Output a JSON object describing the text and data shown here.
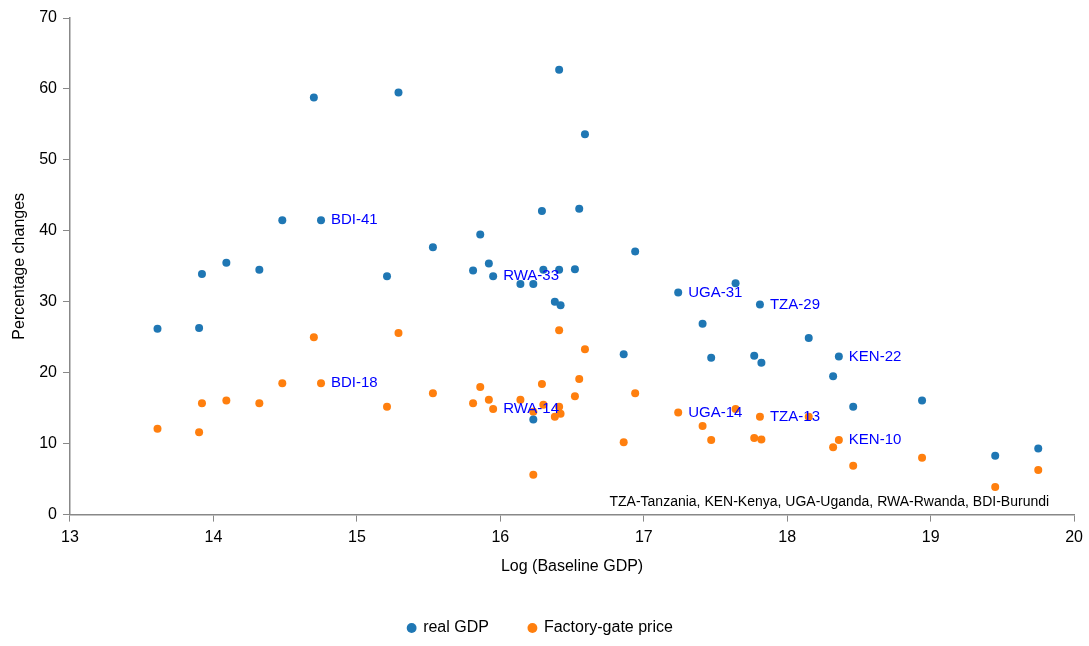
{
  "chart_data": {
    "type": "scatter",
    "xlabel": "Log (Baseline GDP)",
    "ylabel": "Percentage changes",
    "xlim": [
      13,
      20
    ],
    "xticks": [
      13,
      14,
      15,
      16,
      17,
      18,
      19,
      20
    ],
    "ylim": [
      0,
      70
    ],
    "yticks": [
      0,
      10,
      20,
      30,
      40,
      50,
      60,
      70
    ],
    "grid": false,
    "legend": "bottom",
    "marker": "circle",
    "x": [
      13.61,
      13.9,
      13.92,
      14.09,
      14.32,
      14.48,
      14.7,
      14.75,
      15.21,
      15.29,
      15.53,
      15.81,
      15.86,
      15.92,
      15.95,
      16.14,
      16.23,
      16.23,
      16.29,
      16.3,
      16.38,
      16.42,
      16.41,
      16.41,
      16.52,
      16.55,
      16.59,
      16.94,
      16.86,
      17.24,
      17.41,
      17.47,
      17.64,
      17.77,
      17.82,
      17.81,
      18.15,
      18.36,
      18.32,
      18.46,
      18.94,
      19.45,
      19.75
    ],
    "series": [
      {
        "name": "real GDP",
        "color": "#1f77b4",
        "values": [
          26.2,
          26.3,
          33.9,
          35.5,
          34.5,
          41.5,
          58.8,
          41.5,
          33.6,
          59.5,
          37.7,
          34.4,
          39.5,
          35.4,
          33.6,
          32.5,
          32.5,
          13.4,
          42.8,
          34.5,
          30.0,
          29.5,
          34.5,
          62.7,
          34.6,
          43.1,
          53.6,
          37.1,
          22.6,
          31.3,
          26.9,
          22.1,
          32.6,
          22.4,
          21.4,
          29.6,
          24.9,
          22.3,
          19.5,
          15.2,
          16.1,
          8.3,
          9.3
        ]
      },
      {
        "name": "Factory-gate price",
        "color": "#ff7f0e",
        "values": [
          12.1,
          11.6,
          15.7,
          16.1,
          15.7,
          18.5,
          25.0,
          18.5,
          15.2,
          25.6,
          17.1,
          15.7,
          18.0,
          16.2,
          14.9,
          16.2,
          14.5,
          5.6,
          18.4,
          15.5,
          13.8,
          14.2,
          15.2,
          26.0,
          16.7,
          19.1,
          23.3,
          17.1,
          10.2,
          14.4,
          12.5,
          10.5,
          14.9,
          10.8,
          10.6,
          13.8,
          13.8,
          10.5,
          9.5,
          6.9,
          8.0,
          3.9,
          6.3
        ]
      }
    ],
    "annotations": [
      {
        "text": "BDI-41",
        "x": 14.75,
        "y": 41.5
      },
      {
        "text": "BDI-18",
        "x": 14.75,
        "y": 18.5
      },
      {
        "text": "RWA-33",
        "x": 15.95,
        "y": 33.6
      },
      {
        "text": "RWA-14",
        "x": 15.95,
        "y": 14.9
      },
      {
        "text": "UGA-31",
        "x": 17.24,
        "y": 31.3
      },
      {
        "text": "UGA-14",
        "x": 17.24,
        "y": 14.4
      },
      {
        "text": "TZA-29",
        "x": 17.81,
        "y": 29.6
      },
      {
        "text": "TZA-13",
        "x": 17.81,
        "y": 13.8
      },
      {
        "text": "KEN-22",
        "x": 18.36,
        "y": 22.3
      },
      {
        "text": "KEN-10",
        "x": 18.36,
        "y": 10.5
      },
      "TZA-Tanzania, KEN-Kenya, UGA-Uganda, RWA-Rwanda, BDI-Burundi"
    ]
  }
}
